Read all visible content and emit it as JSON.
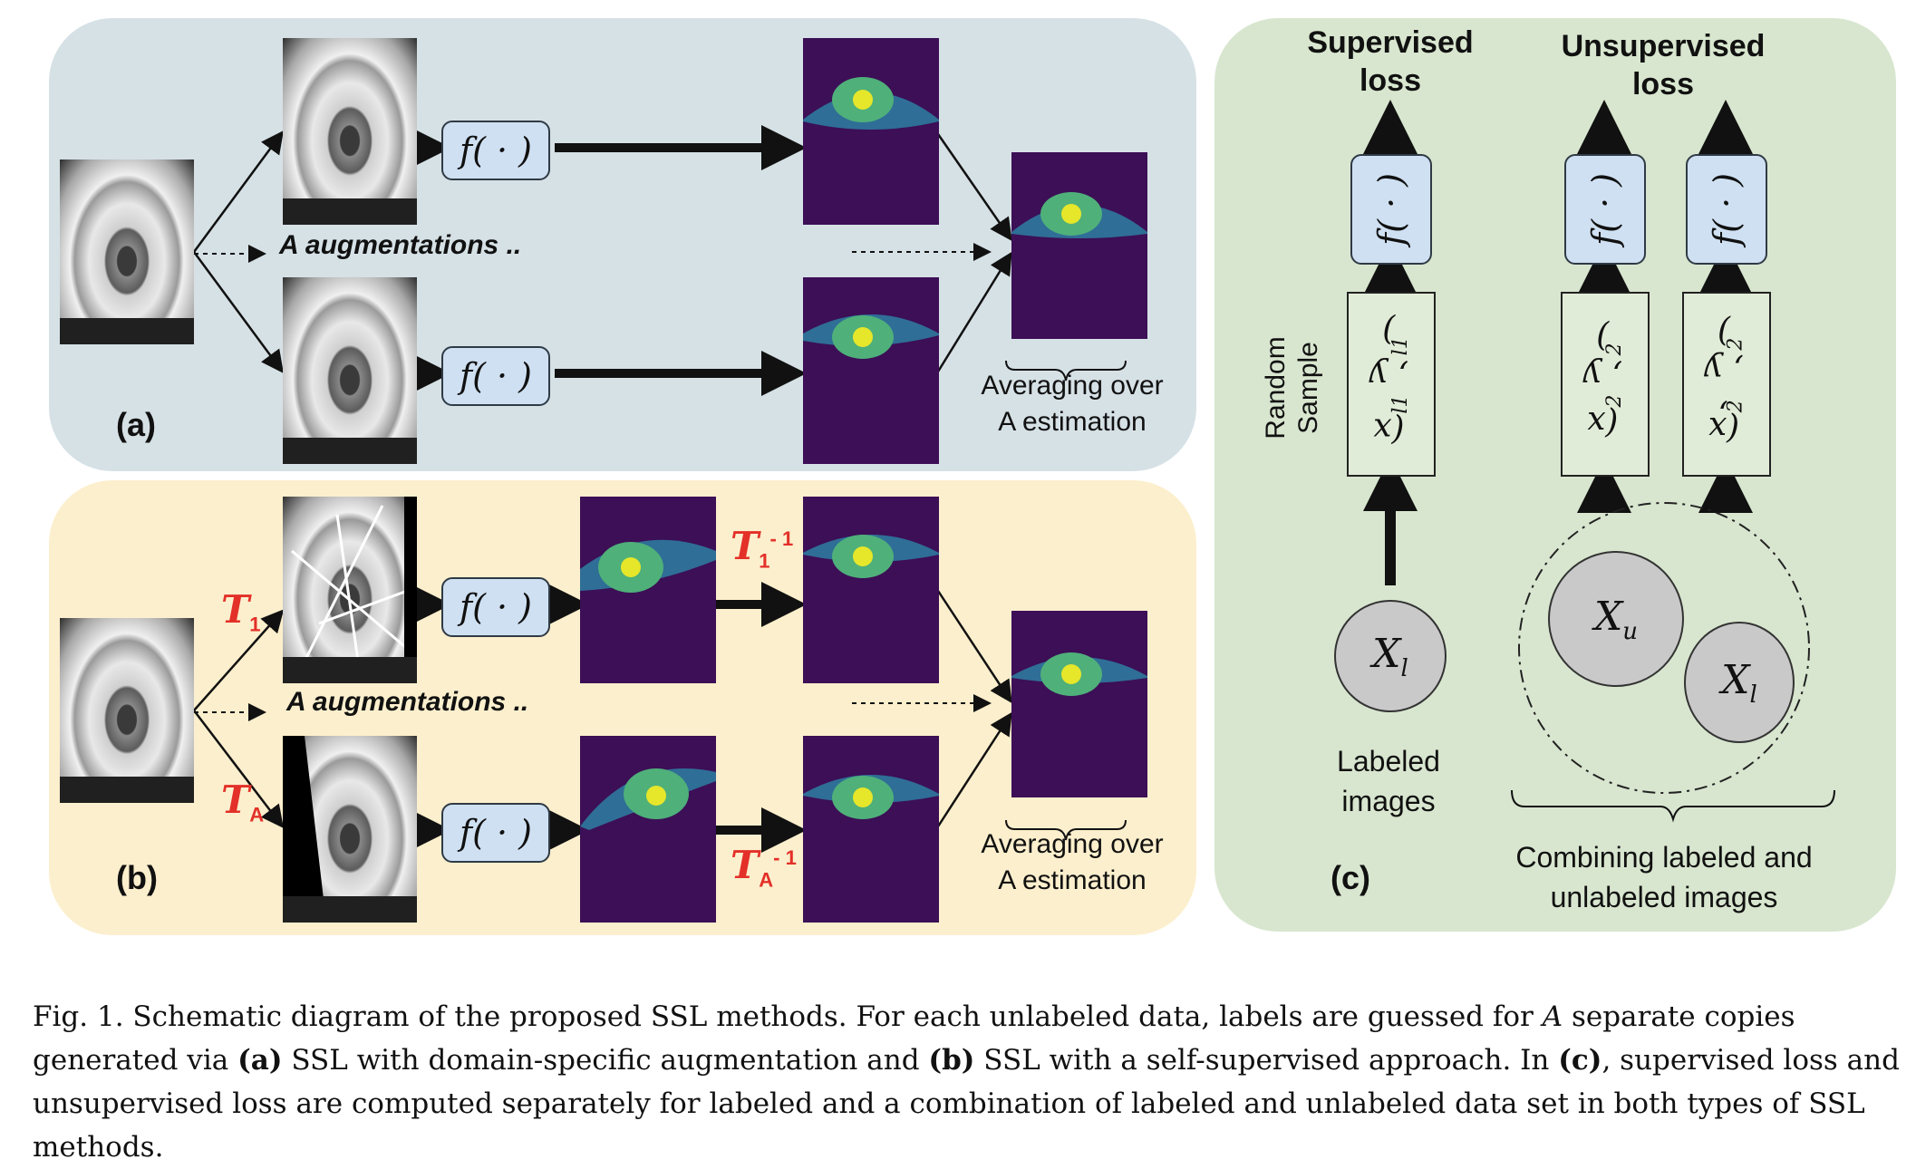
{
  "panel_a": {
    "letter": "(a)",
    "augmentations_label": "A augmentations ..",
    "func_label": "f( · )",
    "averaging_label_line1": "Averaging over",
    "averaging_label_line2": "A estimation"
  },
  "panel_b": {
    "letter": "(b)",
    "augmentations_label": "A augmentations ..",
    "func_label": "f( · )",
    "t1": "T",
    "t1_sub": "1",
    "tA": "T",
    "tA_sub": "A",
    "t1_inv": "T",
    "t1_inv_sub": "1",
    "t1_inv_sup": "- 1",
    "tA_inv": "T",
    "tA_inv_sub": "A",
    "tA_inv_sup": "- 1",
    "averaging_label_line1": "Averaging over",
    "averaging_label_line2": "A estimation"
  },
  "panel_c": {
    "letter": "(c)",
    "supervised_loss_line1": "Supervised",
    "supervised_loss_line2": "loss",
    "unsupervised_loss_line1": "Unsupervised",
    "unsupervised_loss_line2": "loss",
    "func_label": "f( · )",
    "random_sample_line1": "Random",
    "random_sample_line2": "Sample",
    "sample_labeled": "(x",
    "sample_labeled_sub": "l1",
    "sample_labeled_mid": ", y",
    "sample_labeled_sub2": "l1",
    "sample_labeled_end": ")",
    "sample_x2": "(x",
    "sample_x2_sub": "2",
    "sample_x2_mid": ", y",
    "sample_x2_sub2": "2",
    "sample_x2_end": ")",
    "sample_x2p": "(x",
    "sample_x2p_sub": "2",
    "sample_x2p_prime": "’",
    "sample_x2p_mid": ", y",
    "sample_x2p_sub2": "2",
    "sample_x2p_end": ")",
    "circle_xl": "X",
    "circle_xl_sub": "l",
    "circle_xu": "X",
    "circle_xu_sub": "u",
    "circle_xl2": "X",
    "circle_xl2_sub": "l",
    "labeled_images_line1": "Labeled",
    "labeled_images_line2": "images",
    "combining_line1": "Combining labeled and",
    "combining_line2": "unlabeled images"
  },
  "caption": {
    "fig": "Fig. 1.",
    "part1": "Schematic diagram of the proposed SSL methods. For each unlabeled data, labels are guessed for",
    "A": "A",
    "part2": "separate copies generated via",
    "a": "(a)",
    "part3": "SSL with domain-specific augmentation and",
    "b": "(b)",
    "part4": "SSL with a self-supervised approach. In",
    "c": "(c)",
    "part5": ", supervised loss and unsupervised loss are computed separately for labeled and a combination of labeled and unlabeled data set in both types of SSL methods."
  },
  "colors": {
    "panel_a_bg": "#d6e1e6",
    "panel_b_bg": "#fcefcd",
    "panel_c_bg": "#d8e6cf",
    "func_box_fill": "#cfe0f2",
    "segmentation_bg": "#3c0f56",
    "sclera": "#2f6e96",
    "iris": "#4fb07a",
    "pupil": "#e6e62a",
    "transform_red": "#e33028"
  }
}
